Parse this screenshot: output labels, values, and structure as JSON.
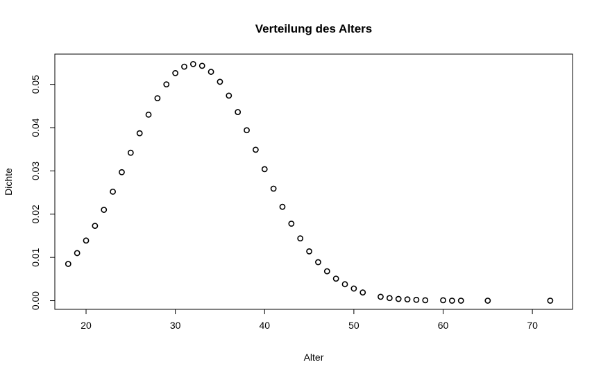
{
  "chart_data": {
    "type": "scatter",
    "title": "Verteilung des Alters",
    "xlabel": "Alter",
    "ylabel": "Dichte",
    "xlim": [
      16.5,
      74.5
    ],
    "ylim": [
      -0.002,
      0.057
    ],
    "x_ticks": [
      20,
      30,
      40,
      50,
      60,
      70
    ],
    "x_tick_labels": [
      "20",
      "30",
      "40",
      "50",
      "60",
      "70"
    ],
    "y_ticks": [
      0.0,
      0.01,
      0.02,
      0.03,
      0.04,
      0.05
    ],
    "y_tick_labels": [
      "0.00",
      "0.01",
      "0.02",
      "0.03",
      "0.04",
      "0.05"
    ],
    "grid": false,
    "marker": "open-circle",
    "color": "#000000",
    "series": [
      {
        "x": [
          18,
          19,
          20,
          21,
          22,
          23,
          24,
          25,
          26,
          27,
          28,
          29,
          30,
          31,
          32,
          33,
          34,
          35,
          36,
          37,
          38,
          39,
          40,
          41,
          42,
          43,
          44,
          45,
          46,
          47,
          48,
          49,
          50,
          51,
          53,
          54,
          55,
          56,
          57,
          58,
          60,
          61,
          62,
          65,
          72
        ],
        "y": [
          0.0085,
          0.011,
          0.0139,
          0.0173,
          0.021,
          0.0252,
          0.0297,
          0.0342,
          0.0387,
          0.043,
          0.0468,
          0.05,
          0.0526,
          0.0541,
          0.0547,
          0.0543,
          0.0529,
          0.0506,
          0.0474,
          0.0436,
          0.0394,
          0.0349,
          0.0304,
          0.0259,
          0.0217,
          0.0178,
          0.0144,
          0.0114,
          0.0089,
          0.0068,
          0.0051,
          0.0038,
          0.0028,
          0.0019,
          0.0009,
          0.0006,
          0.0004,
          0.0003,
          0.0002,
          0.0001,
          0.0001,
          0.0,
          0.0,
          0.0,
          0.0
        ]
      }
    ]
  }
}
